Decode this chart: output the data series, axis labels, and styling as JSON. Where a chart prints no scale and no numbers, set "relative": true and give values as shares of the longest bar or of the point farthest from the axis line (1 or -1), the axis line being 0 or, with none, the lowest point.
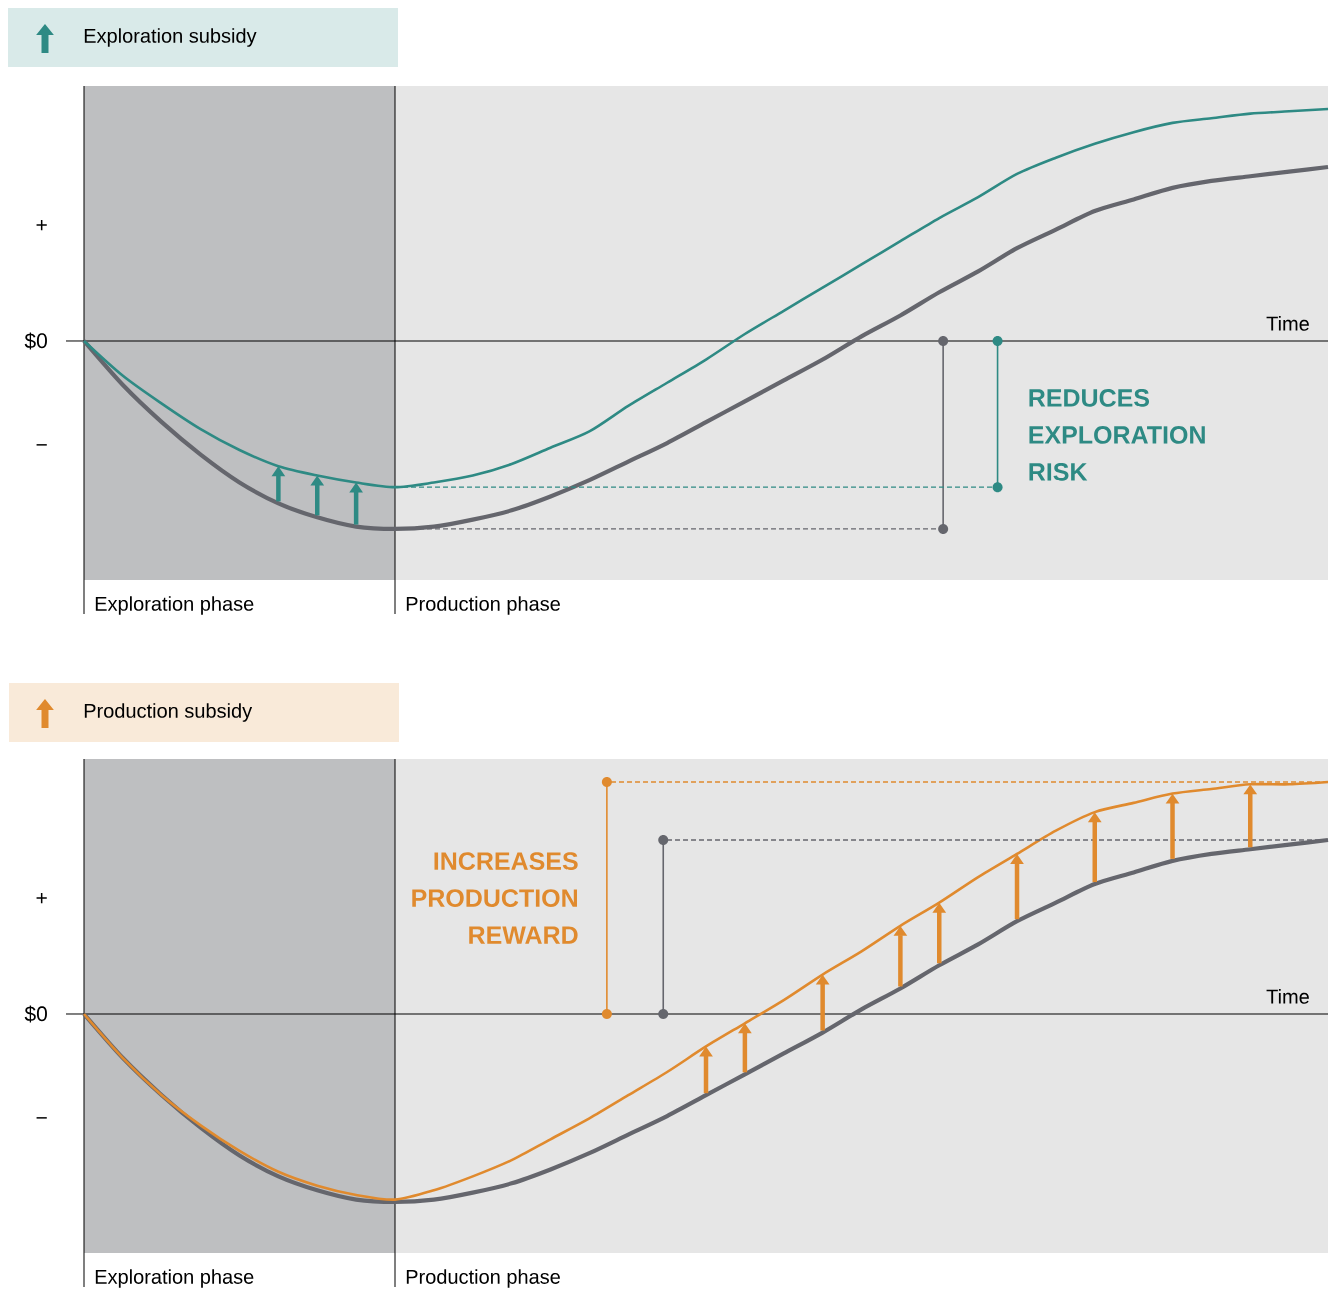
{
  "chart_data": [
    {
      "type": "line",
      "title": "Exploration subsidy",
      "xlabel": "Time",
      "relative": true,
      "line_style": "solid",
      "categories": [
        null,
        null,
        null,
        null,
        null,
        null,
        null,
        null,
        null,
        null,
        null,
        null,
        null,
        null,
        null,
        null,
        null,
        null,
        null,
        null,
        null,
        null,
        null,
        null,
        null,
        null,
        null,
        null,
        null,
        null,
        null,
        null,
        null
      ],
      "series": [
        {
          "color": "#65666d",
          "values": [
            0,
            -0.19,
            -0.35,
            -0.49,
            -0.61,
            -0.7,
            -0.76,
            -0.8,
            -0.81,
            -0.8,
            -0.77,
            -0.73,
            -0.67,
            -0.6,
            -0.52,
            -0.44,
            -0.35,
            -0.26,
            -0.17,
            -0.08,
            0.02,
            0.11,
            0.21,
            0.3,
            0.4,
            0.48,
            0.56,
            0.61,
            0.66,
            0.69,
            0.71,
            0.73,
            0.75
          ]
        },
        {
          "color": "#2e8a84",
          "values": [
            0,
            -0.15,
            -0.27,
            -0.38,
            -0.47,
            -0.54,
            -0.58,
            -0.61,
            -0.63,
            -0.61,
            -0.58,
            -0.53,
            -0.46,
            -0.39,
            -0.28,
            -0.18,
            -0.08,
            0.03,
            0.13,
            0.23,
            0.33,
            0.43,
            0.53,
            0.62,
            0.72,
            0.79,
            0.85,
            0.9,
            0.94,
            0.96,
            0.98,
            0.99,
            1
          ]
        }
      ],
      "ref_lines": [
        {
          "axis": "y",
          "value": -0.81,
          "color": "#65666d",
          "line_style": "dashed"
        },
        {
          "axis": "y",
          "value": -0.63,
          "color": "#2e8a84",
          "line_style": "dashed"
        }
      ],
      "annotations": [
        "+",
        "$0",
        "−",
        "Exploration phase",
        "Production phase",
        "REDUCES EXPLORATION RISK"
      ]
    },
    {
      "type": "line",
      "title": "Production subsidy",
      "xlabel": "Time",
      "relative": true,
      "line_style": "solid",
      "categories": [
        null,
        null,
        null,
        null,
        null,
        null,
        null,
        null,
        null,
        null,
        null,
        null,
        null,
        null,
        null,
        null,
        null,
        null,
        null,
        null,
        null,
        null,
        null,
        null,
        null,
        null,
        null,
        null,
        null,
        null,
        null,
        null,
        null
      ],
      "series": [
        {
          "color": "#65666d",
          "values": [
            0,
            -0.19,
            -0.35,
            -0.49,
            -0.61,
            -0.7,
            -0.76,
            -0.8,
            -0.81,
            -0.8,
            -0.77,
            -0.73,
            -0.67,
            -0.6,
            -0.52,
            -0.44,
            -0.35,
            -0.26,
            -0.17,
            -0.08,
            0.02,
            0.11,
            0.21,
            0.3,
            0.4,
            0.48,
            0.56,
            0.61,
            0.66,
            0.69,
            0.71,
            0.73,
            0.75
          ]
        },
        {
          "color": "#e08a2e",
          "values": [
            0,
            -0.19,
            -0.35,
            -0.48,
            -0.59,
            -0.68,
            -0.74,
            -0.78,
            -0.8,
            -0.76,
            -0.7,
            -0.63,
            -0.54,
            -0.45,
            -0.35,
            -0.25,
            -0.14,
            -0.04,
            0.06,
            0.17,
            0.27,
            0.38,
            0.48,
            0.59,
            0.69,
            0.79,
            0.87,
            0.91,
            0.95,
            0.97,
            0.99,
            0.99,
            1
          ]
        }
      ],
      "ref_lines": [
        {
          "axis": "y",
          "value": 0.75,
          "color": "#65666d",
          "line_style": "dashed"
        },
        {
          "axis": "y",
          "value": 1,
          "color": "#e08a2e",
          "line_style": "dashed"
        }
      ],
      "annotations": [
        "+",
        "$0",
        "−",
        "Exploration phase",
        "Production phase",
        "INCREASES PRODUCTION REWARD"
      ]
    }
  ]
}
